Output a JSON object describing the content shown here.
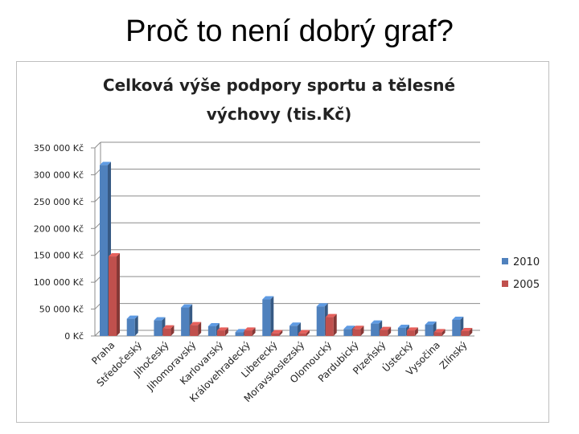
{
  "slide": {
    "title": "Proč to není dobrý graf?"
  },
  "chart_data": {
    "type": "bar",
    "title_lines": [
      "Celková výše podpory sportu a tělesné",
      "výchovy (tis.Kč)"
    ],
    "categories": [
      "Praha",
      "Středočeský",
      "Jihočeský",
      "Jihomoravský",
      "Karlovarský",
      "Královehradecký",
      "Liberecký",
      "Moravskoslezský",
      "Olomoucký",
      "Pardubický",
      "Plzeňský",
      "Ústecký",
      "Vysočina",
      "Zlínský"
    ],
    "series": [
      {
        "name": "2010",
        "color": "#4f81bd",
        "values": [
          318000,
          32000,
          29000,
          53000,
          18000,
          7000,
          68000,
          19000,
          55000,
          13000,
          23000,
          15000,
          21000,
          30000
        ]
      },
      {
        "name": "2005",
        "color": "#c0504d",
        "values": [
          148000,
          0,
          14000,
          20000,
          10000,
          10000,
          5000,
          5000,
          35000,
          13000,
          11000,
          10000,
          7000,
          9000
        ]
      }
    ],
    "y_ticks": [
      "0 Kč",
      "50 000 Kč",
      "100 000 Kč",
      "150 000 Kč",
      "200 000 Kč",
      "250 000 Kč",
      "300 000 Kč",
      "350 000 Kč"
    ],
    "ylim": [
      0,
      350000
    ],
    "grid": true,
    "legend_position": "right"
  }
}
